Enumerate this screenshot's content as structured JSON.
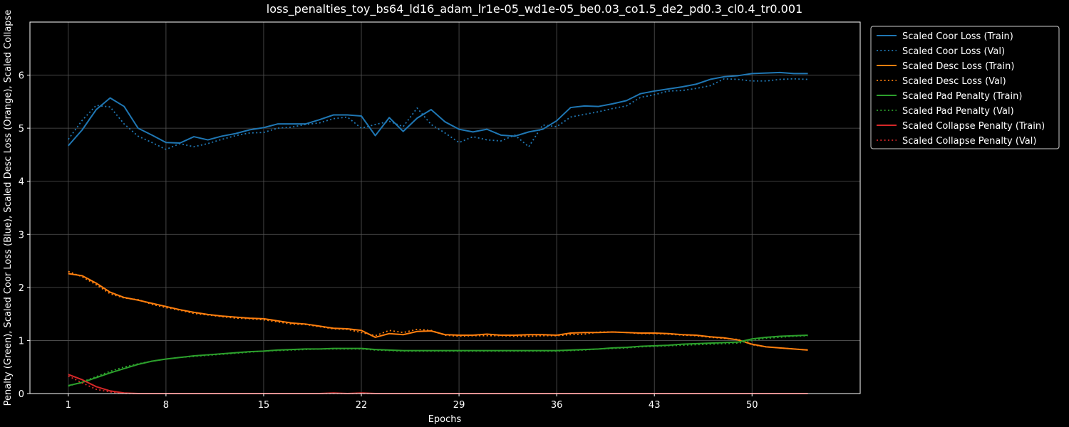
{
  "chart_data": {
    "type": "line",
    "title": "loss_penalties_toy_bs64_ld16_adam_lr1e-05_wd1e-05_be0.03_co1.5_de2_pd0.3_cl0.4_tr0.001",
    "xlabel": "Epochs",
    "ylabel": "Penalty (Green), Scaled Coor Loss (Blue), Scaled Desc Loss (Orange), Scaled Collapse",
    "xlim": [
      -1.75,
      57.75
    ],
    "ylim": [
      0,
      7
    ],
    "xticks": [
      1,
      8,
      15,
      22,
      29,
      36,
      43,
      50
    ],
    "yticks": [
      0,
      1,
      2,
      3,
      4,
      5,
      6
    ],
    "grid": true,
    "legend_position": "outside-top-right",
    "x": [
      1,
      2,
      3,
      4,
      5,
      6,
      7,
      8,
      9,
      10,
      11,
      12,
      13,
      14,
      15,
      16,
      17,
      18,
      19,
      20,
      21,
      22,
      23,
      24,
      25,
      26,
      27,
      28,
      29,
      30,
      31,
      32,
      33,
      34,
      35,
      36,
      37,
      38,
      39,
      40,
      41,
      42,
      43,
      44,
      45,
      46,
      47,
      48,
      49,
      50,
      51,
      52,
      53,
      54
    ],
    "series": [
      {
        "name": "Scaled Coor Loss (Train)",
        "color": "#1f77b4",
        "dash": "solid",
        "values": [
          4.67,
          4.97,
          5.35,
          5.57,
          5.41,
          5.0,
          4.87,
          4.73,
          4.72,
          4.84,
          4.78,
          4.85,
          4.9,
          4.97,
          5.01,
          5.08,
          5.08,
          5.08,
          5.16,
          5.25,
          5.25,
          5.23,
          4.86,
          5.2,
          4.94,
          5.19,
          5.35,
          5.12,
          4.98,
          4.93,
          4.98,
          4.87,
          4.85,
          4.93,
          4.98,
          5.14,
          5.39,
          5.42,
          5.41,
          5.46,
          5.52,
          5.65,
          5.7,
          5.74,
          5.78,
          5.83,
          5.92,
          5.97,
          5.99,
          6.03,
          6.04,
          6.05,
          6.03,
          6.03
        ]
      },
      {
        "name": "Scaled Coor Loss (Val)",
        "color": "#1f77b4",
        "dash": "dotted",
        "values": [
          4.79,
          5.15,
          5.43,
          5.4,
          5.08,
          4.85,
          4.73,
          4.6,
          4.71,
          4.65,
          4.71,
          4.79,
          4.86,
          4.91,
          4.92,
          5.0,
          5.02,
          5.07,
          5.1,
          5.18,
          5.21,
          5.0,
          5.07,
          5.13,
          5.03,
          5.38,
          5.07,
          4.91,
          4.73,
          4.84,
          4.78,
          4.76,
          4.87,
          4.65,
          5.06,
          5.03,
          5.21,
          5.26,
          5.31,
          5.37,
          5.42,
          5.58,
          5.63,
          5.7,
          5.71,
          5.75,
          5.8,
          5.93,
          5.92,
          5.89,
          5.89,
          5.92,
          5.93,
          5.92
        ]
      },
      {
        "name": "Scaled Desc Loss (Train)",
        "color": "#ff7f0e",
        "dash": "solid",
        "values": [
          2.26,
          2.22,
          2.08,
          1.91,
          1.81,
          1.76,
          1.7,
          1.64,
          1.58,
          1.53,
          1.49,
          1.46,
          1.44,
          1.42,
          1.41,
          1.37,
          1.33,
          1.31,
          1.27,
          1.23,
          1.22,
          1.19,
          1.06,
          1.13,
          1.11,
          1.17,
          1.18,
          1.11,
          1.1,
          1.1,
          1.12,
          1.1,
          1.1,
          1.11,
          1.11,
          1.1,
          1.14,
          1.15,
          1.15,
          1.16,
          1.15,
          1.14,
          1.14,
          1.13,
          1.11,
          1.1,
          1.07,
          1.05,
          1.01,
          0.93,
          0.88,
          0.86,
          0.84,
          0.82
        ]
      },
      {
        "name": "Scaled Desc Loss (Val)",
        "color": "#ff7f0e",
        "dash": "dotted",
        "values": [
          2.3,
          2.2,
          2.05,
          1.88,
          1.8,
          1.77,
          1.68,
          1.62,
          1.57,
          1.51,
          1.48,
          1.45,
          1.42,
          1.41,
          1.39,
          1.35,
          1.31,
          1.3,
          1.26,
          1.22,
          1.21,
          1.15,
          1.09,
          1.19,
          1.15,
          1.21,
          1.19,
          1.1,
          1.08,
          1.09,
          1.09,
          1.09,
          1.08,
          1.08,
          1.09,
          1.09,
          1.11,
          1.12,
          1.16,
          1.16,
          1.15,
          1.13,
          1.13,
          1.12,
          1.1,
          1.09,
          1.06,
          1.04,
          1.02,
          0.92,
          0.88,
          0.86,
          0.84,
          0.82
        ]
      },
      {
        "name": "Scaled Pad Penalty (Train)",
        "color": "#2ca02c",
        "dash": "solid",
        "values": [
          0.15,
          0.21,
          0.3,
          0.39,
          0.47,
          0.55,
          0.61,
          0.65,
          0.68,
          0.71,
          0.73,
          0.75,
          0.77,
          0.79,
          0.8,
          0.82,
          0.83,
          0.84,
          0.84,
          0.85,
          0.85,
          0.85,
          0.83,
          0.82,
          0.81,
          0.81,
          0.81,
          0.81,
          0.81,
          0.81,
          0.81,
          0.81,
          0.81,
          0.81,
          0.81,
          0.81,
          0.82,
          0.83,
          0.84,
          0.86,
          0.87,
          0.89,
          0.9,
          0.91,
          0.93,
          0.94,
          0.95,
          0.96,
          0.97,
          1.03,
          1.06,
          1.08,
          1.09,
          1.1
        ]
      },
      {
        "name": "Scaled Pad Penalty (Val)",
        "color": "#2ca02c",
        "dash": "dotted",
        "values": [
          0.14,
          0.22,
          0.32,
          0.42,
          0.5,
          0.56,
          0.61,
          0.65,
          0.68,
          0.7,
          0.72,
          0.74,
          0.76,
          0.78,
          0.8,
          0.81,
          0.82,
          0.83,
          0.84,
          0.84,
          0.84,
          0.84,
          0.82,
          0.81,
          0.8,
          0.8,
          0.8,
          0.8,
          0.8,
          0.8,
          0.8,
          0.8,
          0.8,
          0.8,
          0.8,
          0.8,
          0.81,
          0.82,
          0.84,
          0.85,
          0.86,
          0.88,
          0.89,
          0.9,
          0.91,
          0.92,
          0.93,
          0.94,
          0.95,
          1.0,
          1.04,
          1.06,
          1.08,
          1.09
        ]
      },
      {
        "name": "Scaled Collapse Penalty (Train)",
        "color": "#d62728",
        "dash": "solid",
        "values": [
          0.36,
          0.26,
          0.13,
          0.05,
          0.01,
          0,
          0,
          0,
          0,
          0,
          0,
          0,
          0,
          0,
          0,
          0,
          0,
          0,
          0,
          0.01,
          0,
          0.01,
          0,
          0,
          0,
          0,
          0,
          0,
          0,
          0,
          0,
          0,
          0,
          0,
          0,
          0,
          0,
          0,
          0,
          0,
          0,
          0,
          0,
          0,
          0,
          0,
          0,
          0,
          0,
          0,
          0,
          0,
          0,
          0
        ]
      },
      {
        "name": "Scaled Collapse Penalty (Val)",
        "color": "#d62728",
        "dash": "dotted",
        "values": [
          0.33,
          0.2,
          0.08,
          0.03,
          0,
          0,
          0,
          0,
          0,
          0,
          0,
          0,
          0,
          0,
          0,
          0,
          0,
          0,
          0,
          0,
          0,
          0,
          0,
          0,
          0,
          0,
          0,
          0,
          0,
          0,
          0,
          0,
          0,
          0,
          0,
          0,
          0,
          0,
          0,
          0,
          0,
          0,
          0,
          0,
          0,
          0,
          0,
          0,
          0,
          0,
          0,
          0,
          0,
          0
        ]
      }
    ]
  }
}
